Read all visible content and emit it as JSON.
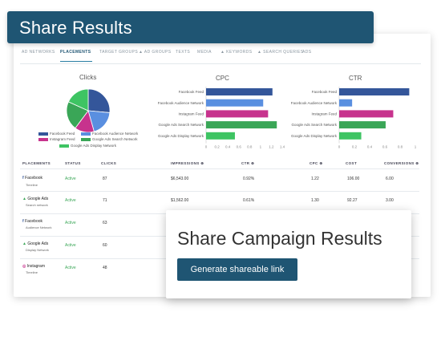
{
  "header": {
    "title": "Share Results"
  },
  "tabs": [
    {
      "label": "AD NETWORKS"
    },
    {
      "label": "PLACEMENTS",
      "active": true
    },
    {
      "label": "TARGET GROUPS"
    },
    {
      "label": "AD GROUPS"
    },
    {
      "label": "TEXTS"
    },
    {
      "label": "MEDIA"
    },
    {
      "label": "KEYWORDS"
    },
    {
      "label": "SEARCH QUERIES"
    },
    {
      "label": "ADS"
    }
  ],
  "colors": {
    "facebook_feed": "#34569a",
    "facebook_audience": "#5a8fe0",
    "instagram_feed": "#c7338d",
    "google_search": "#3aa657",
    "google_display": "#3ec463",
    "brand": "#1f5573"
  },
  "chart_data": [
    {
      "type": "pie",
      "title": "Clicks",
      "categories": [
        "Facebook Feed",
        "Facebook Audience Network",
        "Instagram Feed",
        "Google Ads Search Network",
        "Google Ads Display Network"
      ],
      "values": [
        87,
        63,
        48,
        71,
        60
      ]
    },
    {
      "type": "bar",
      "orientation": "horizontal",
      "title": "CPC",
      "categories": [
        "Facebook Feed",
        "Facebook Audience Network",
        "Instagram Feed",
        "Google Ads Search Network",
        "Google Ads Display Network"
      ],
      "values": [
        1.22,
        1.05,
        1.14,
        1.3,
        0.53
      ],
      "xlim": [
        0,
        1.4
      ],
      "ticks": [
        "0",
        "0.2",
        "0.4",
        "0.6",
        "0.8",
        "1",
        "1.2",
        "1.4"
      ]
    },
    {
      "type": "bar",
      "orientation": "horizontal",
      "title": "CTR",
      "categories": [
        "Facebook Feed",
        "Facebook Audience Network",
        "Instagram Feed",
        "Google Ads Search Network",
        "Google Ads Display Network"
      ],
      "values": [
        0.92,
        0.17,
        0.71,
        0.61,
        0.29
      ],
      "xlim": [
        0,
        1
      ],
      "ticks": [
        "0",
        "0.2",
        "0.4",
        "0.6",
        "0.8",
        "1"
      ]
    }
  ],
  "legend": [
    "Facebook Feed",
    "Facebook Audience Network",
    "Instagram Feed",
    "Google Ads Search Network",
    "Google Ads Display Network"
  ],
  "table": {
    "headers": [
      "PLACEMENTS",
      "STATUS",
      "CLICKS",
      "IMPRESSIONS",
      "CTR",
      "CPC",
      "COST",
      "CONVERSIONS"
    ],
    "rows": [
      {
        "name": "Facebook",
        "sub": "Timeline",
        "status": "Active",
        "clicks": "87",
        "impressions": "$6,543.00",
        "ctr": "0.92%",
        "cpc": "1.22",
        "cost": "106.00",
        "conversions": "6.00"
      },
      {
        "name": "Google Ads",
        "sub": "Search network",
        "status": "Active",
        "clicks": "71",
        "impressions": "$1,562.00",
        "ctr": "0.61%",
        "cpc": "1.30",
        "cost": "92.27",
        "conversions": "3.00"
      },
      {
        "name": "Facebook",
        "sub": "Audience Network",
        "status": "Active",
        "clicks": "63",
        "impressions": "",
        "ctr": "",
        "cpc": "",
        "cost": "",
        "conversions": ""
      },
      {
        "name": "Google Ads",
        "sub": "Display Network",
        "status": "Active",
        "clicks": "60",
        "impressions": "",
        "ctr": "",
        "cpc": "",
        "cost": "",
        "conversions": ""
      },
      {
        "name": "Instagram",
        "sub": "Timeline",
        "status": "Active",
        "clicks": "48",
        "impressions": "",
        "ctr": "",
        "cpc": "",
        "cost": "",
        "conversions": ""
      }
    ]
  },
  "share": {
    "heading": "Share Campaign Results",
    "button_label": "Generate shareable link"
  }
}
